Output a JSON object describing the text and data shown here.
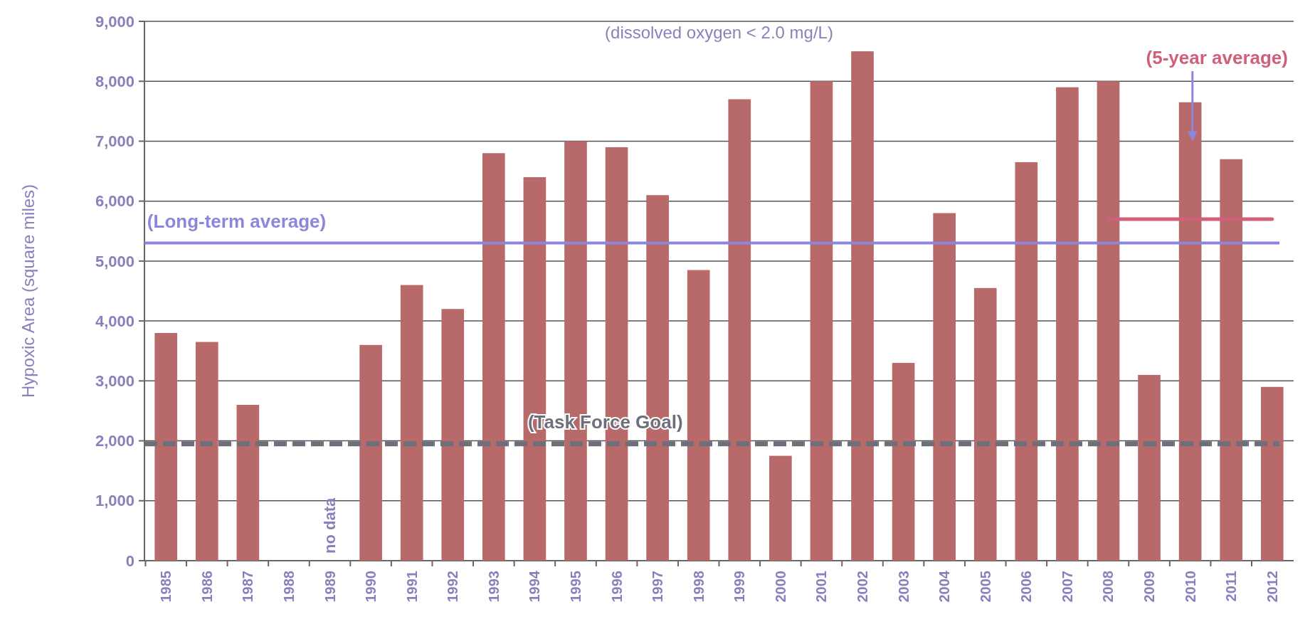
{
  "chart_data": {
    "type": "bar",
    "subtitle": "(dissolved oxygen < 2.0 mg/L)",
    "ylabel": "Hypoxic Area (square miles)",
    "categories": [
      "1985",
      "1986",
      "1987",
      "1988",
      "1989",
      "1990",
      "1991",
      "1992",
      "1993",
      "1994",
      "1995",
      "1996",
      "1997",
      "1998",
      "1999",
      "2000",
      "2001",
      "2002",
      "2003",
      "2004",
      "2005",
      "2006",
      "2007",
      "2008",
      "2009",
      "2010",
      "2011",
      "2012"
    ],
    "series": [
      {
        "color": "#b86a6a",
        "values": [
          3800,
          3650,
          2600,
          null,
          null,
          3600,
          4600,
          4200,
          6800,
          6400,
          7000,
          6900,
          6100,
          4850,
          7700,
          1750,
          8000,
          8500,
          3300,
          5800,
          4550,
          6650,
          7900,
          8000,
          3100,
          7650,
          6700,
          2900
        ]
      },
      {
        "type": "line",
        "name": "(5-year average)",
        "color": "#d0607a",
        "values": [
          null,
          null,
          null,
          null,
          null,
          null,
          null,
          null,
          null,
          null,
          null,
          null,
          null,
          null,
          null,
          null,
          null,
          null,
          null,
          null,
          null,
          null,
          null,
          5700,
          5700,
          5700,
          5700,
          5700
        ]
      }
    ],
    "ylim": [
      0,
      9000
    ],
    "yticks": [
      {
        "value": 0,
        "label": "0"
      },
      {
        "value": 1000,
        "label": "1,000"
      },
      {
        "value": 2000,
        "label": "2,000"
      },
      {
        "value": 3000,
        "label": "3,000"
      },
      {
        "value": 4000,
        "label": "4,000"
      },
      {
        "value": 5000,
        "label": "5,000"
      },
      {
        "value": 6000,
        "label": "6,000"
      },
      {
        "value": 7000,
        "label": "7,000"
      },
      {
        "value": 8000,
        "label": "8,000"
      },
      {
        "value": 9000,
        "label": "9,000"
      }
    ],
    "grid": "y",
    "ref_lines": [
      {
        "axis": "y",
        "value": 5300,
        "label": "(Long-term average)",
        "color": "#8c86dc",
        "line_style": "solid"
      },
      {
        "axis": "y",
        "value": 1950,
        "label": "(Task Force Goal)",
        "color": "#6f6f7c",
        "line_style": "dashed"
      }
    ],
    "annotations": [
      "no data"
    ]
  }
}
